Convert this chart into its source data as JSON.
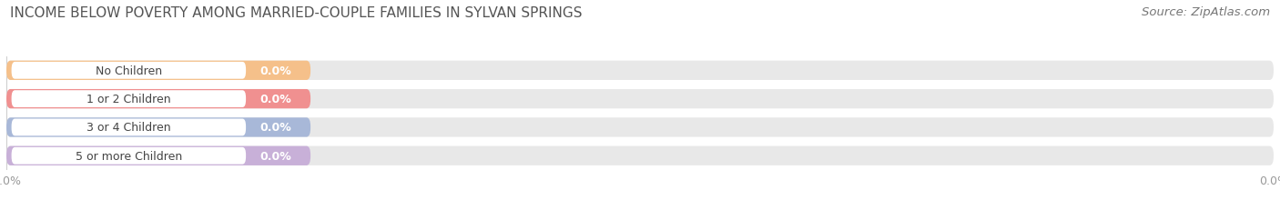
{
  "title": "INCOME BELOW POVERTY AMONG MARRIED-COUPLE FAMILIES IN SYLVAN SPRINGS",
  "source": "Source: ZipAtlas.com",
  "categories": [
    "No Children",
    "1 or 2 Children",
    "3 or 4 Children",
    "5 or more Children"
  ],
  "values": [
    0.0,
    0.0,
    0.0,
    0.0
  ],
  "bar_colors": [
    "#f5c08a",
    "#f09090",
    "#a8b8d8",
    "#c8b0d8"
  ],
  "bar_bg_color": "#e8e8e8",
  "background_color": "#ffffff",
  "title_fontsize": 11,
  "source_fontsize": 9.5,
  "cat_label_fontsize": 9,
  "val_label_fontsize": 9,
  "tick_fontsize": 9,
  "tick_color": "#999999",
  "title_color": "#555555",
  "source_color": "#777777",
  "cat_text_color": "#444444",
  "val_text_color": "#ffffff",
  "grid_color": "#cccccc",
  "white_pill_color": "#ffffff"
}
